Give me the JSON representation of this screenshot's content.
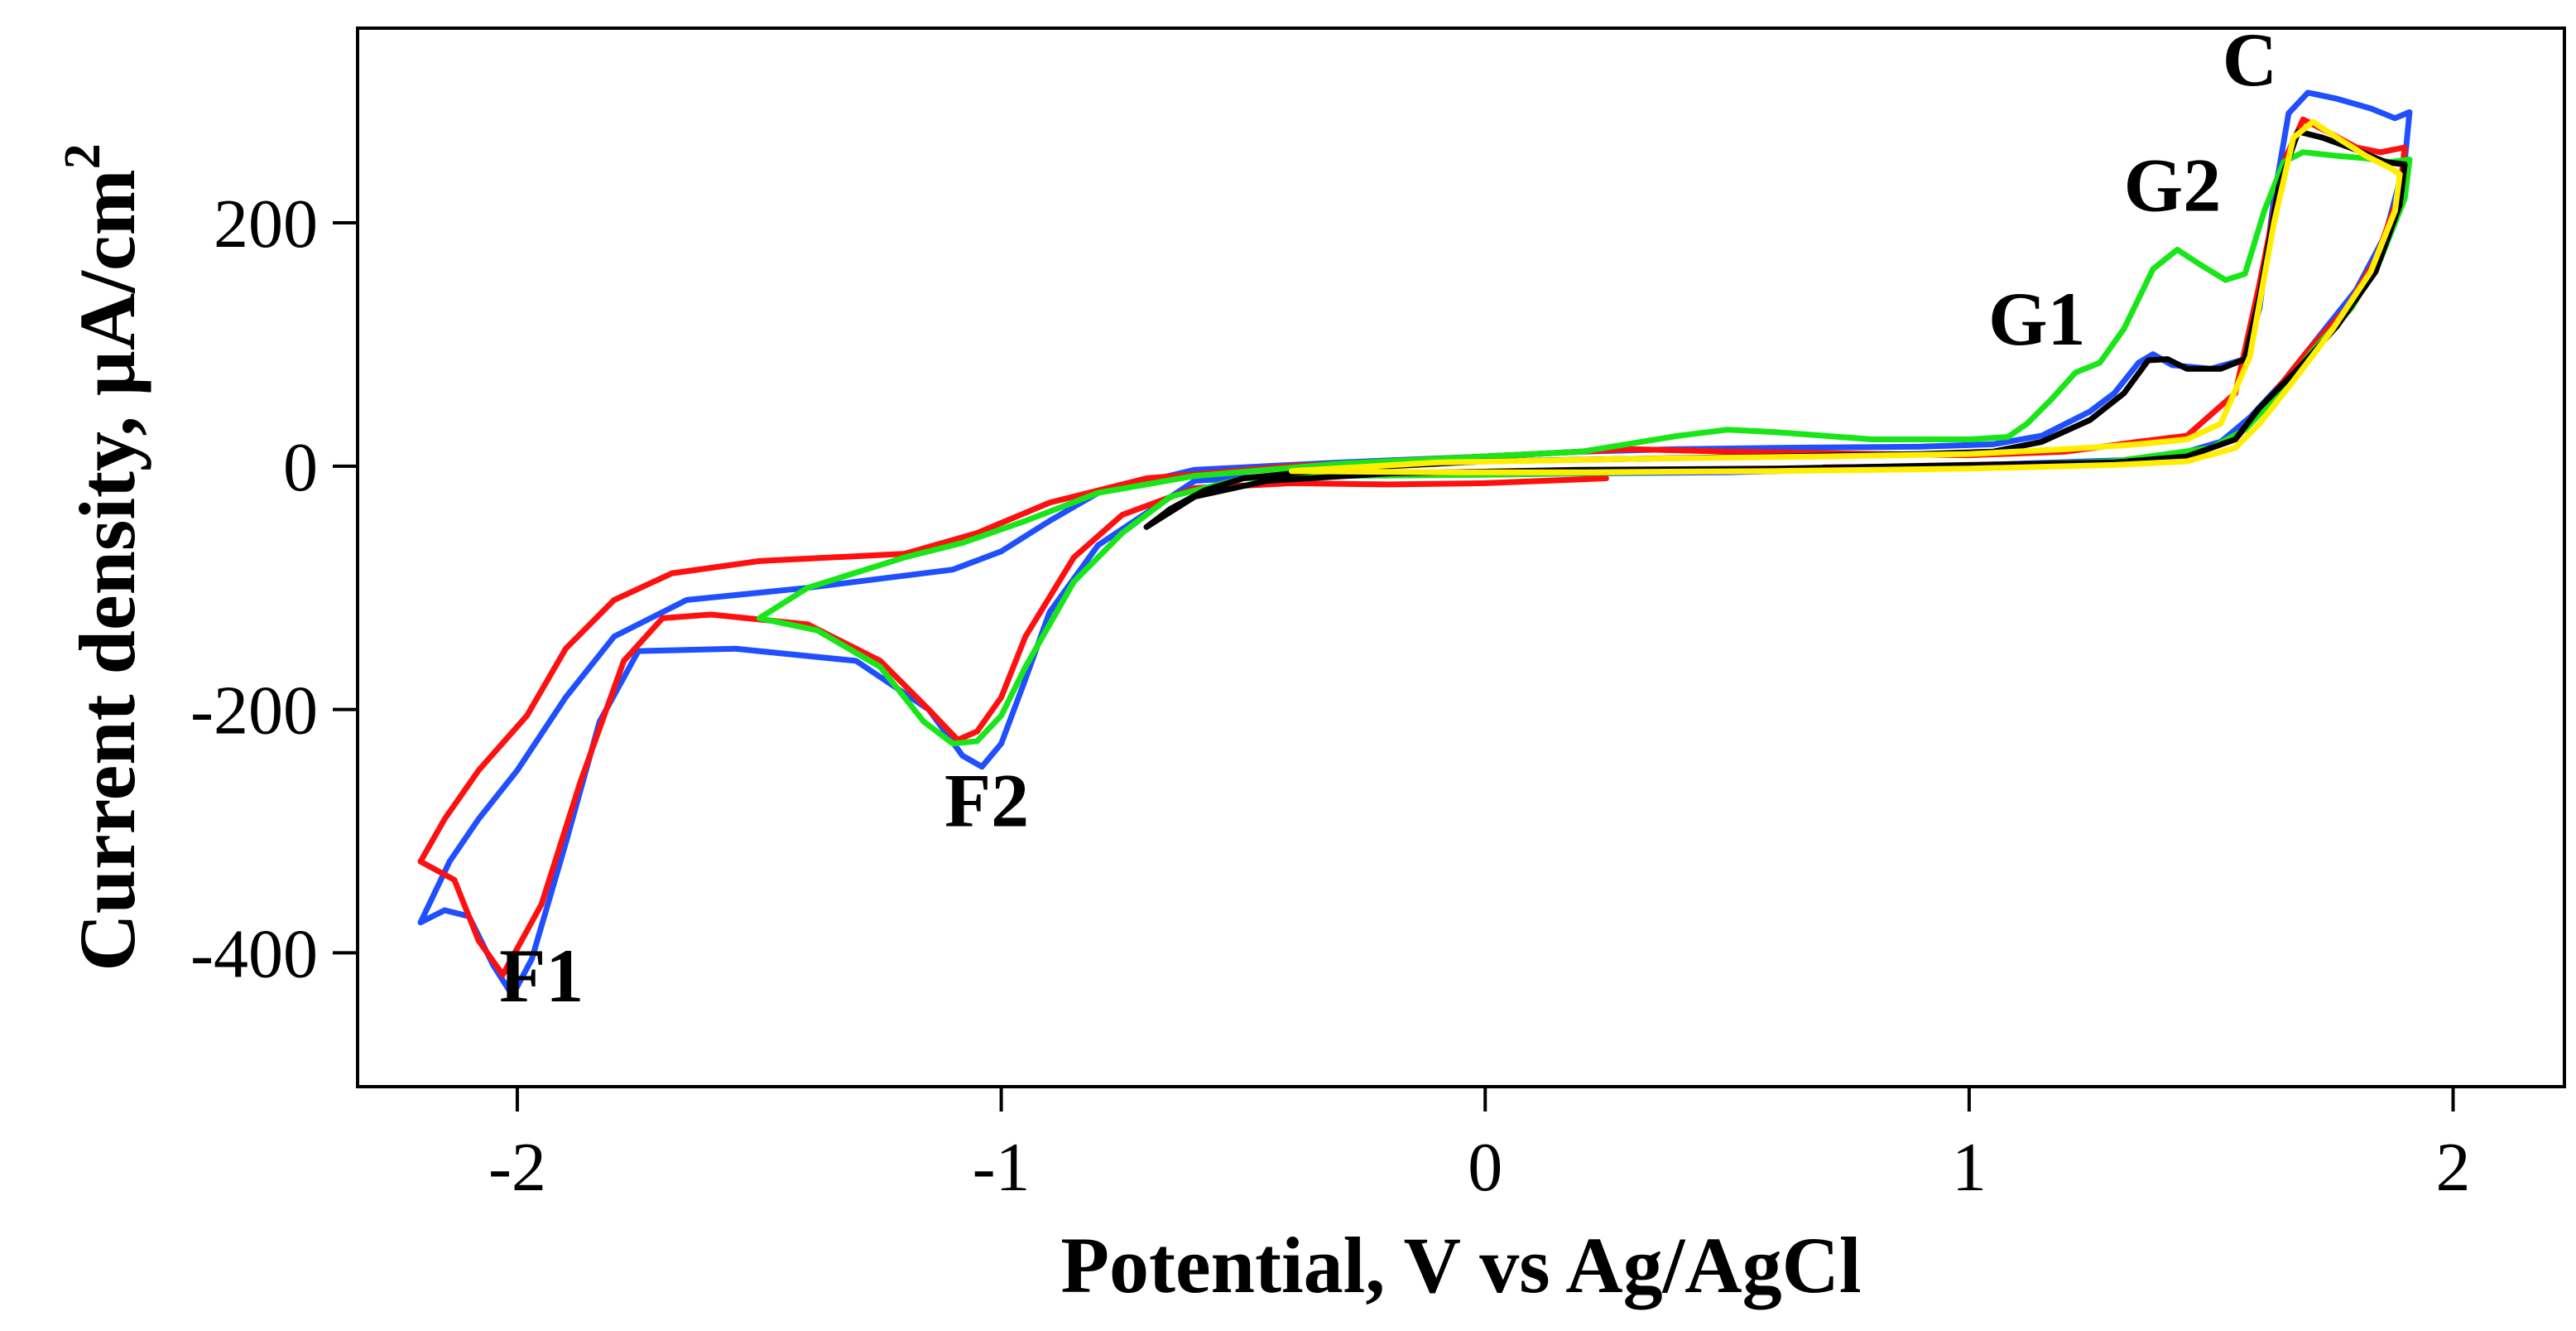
{
  "chart_data": {
    "type": "line",
    "title": "",
    "xlabel": "Potential, V vs Ag/AgCl",
    "ylabel_main": "Current density, µA/cm",
    "ylabel_superscript": "2",
    "xlim": [
      -2.33,
      2.23
    ],
    "ylim": [
      -510,
      360
    ],
    "xticks": [
      -2,
      -1,
      0,
      1,
      2
    ],
    "xtick_labels": [
      "-2",
      "-1",
      "0",
      "1",
      "2"
    ],
    "yticks": [
      200,
      0,
      -200,
      -400
    ],
    "ytick_labels": [
      "200",
      "0",
      "-200",
      "-400"
    ],
    "grid": false,
    "legend": "none",
    "annotations": [
      {
        "text": "F1",
        "x": -1.95,
        "y": -440
      },
      {
        "text": "F2",
        "x": -1.03,
        "y": -296
      },
      {
        "text": "G1",
        "x": 1.14,
        "y": 100
      },
      {
        "text": "G2",
        "x": 1.42,
        "y": 210
      },
      {
        "text": "C",
        "x": 1.58,
        "y": 313
      }
    ],
    "series": [
      {
        "name": "blue",
        "color": "#1f4fff",
        "points": [
          [
            -0.4,
            -7
          ],
          [
            -0.6,
            -12
          ],
          [
            -0.8,
            -65
          ],
          [
            -0.9,
            -120
          ],
          [
            -0.95,
            -175
          ],
          [
            -1.0,
            -228
          ],
          [
            -1.04,
            -247
          ],
          [
            -1.08,
            -238
          ],
          [
            -1.15,
            -200
          ],
          [
            -1.3,
            -160
          ],
          [
            -1.55,
            -150
          ],
          [
            -1.75,
            -152
          ],
          [
            -1.83,
            -210
          ],
          [
            -1.9,
            -310
          ],
          [
            -1.97,
            -405
          ],
          [
            -2.01,
            -435
          ],
          [
            -2.05,
            -410
          ],
          [
            -2.1,
            -370
          ],
          [
            -2.15,
            -365
          ],
          [
            -2.2,
            -375
          ],
          [
            -2.14,
            -325
          ],
          [
            -2.08,
            -290
          ],
          [
            -2.0,
            -250
          ],
          [
            -1.9,
            -190
          ],
          [
            -1.8,
            -140
          ],
          [
            -1.65,
            -110
          ],
          [
            -1.4,
            -100
          ],
          [
            -1.1,
            -85
          ],
          [
            -1.0,
            -70
          ],
          [
            -0.9,
            -45
          ],
          [
            -0.8,
            -22
          ],
          [
            -0.6,
            -3
          ],
          [
            -0.3,
            3
          ],
          [
            0.0,
            8
          ],
          [
            0.2,
            12
          ],
          [
            0.4,
            14
          ],
          [
            0.6,
            15
          ],
          [
            0.9,
            16
          ],
          [
            1.05,
            18
          ],
          [
            1.15,
            25
          ],
          [
            1.25,
            45
          ],
          [
            1.3,
            60
          ],
          [
            1.35,
            85
          ],
          [
            1.38,
            92
          ],
          [
            1.42,
            83
          ],
          [
            1.5,
            80
          ],
          [
            1.57,
            88
          ],
          [
            1.6,
            130
          ],
          [
            1.63,
            220
          ],
          [
            1.66,
            290
          ],
          [
            1.7,
            307
          ],
          [
            1.76,
            302
          ],
          [
            1.83,
            294
          ],
          [
            1.88,
            286
          ],
          [
            1.91,
            291
          ],
          [
            1.9,
            250
          ],
          [
            1.86,
            190
          ],
          [
            1.8,
            145
          ],
          [
            1.72,
            105
          ],
          [
            1.65,
            70
          ],
          [
            1.58,
            40
          ],
          [
            1.52,
            20
          ],
          [
            1.4,
            6
          ],
          [
            1.1,
            2
          ],
          [
            0.8,
            -2
          ],
          [
            0.5,
            -5
          ],
          [
            0.2,
            -6
          ],
          [
            0.0,
            -7
          ],
          [
            -0.2,
            -7
          ],
          [
            -0.4,
            -7
          ]
        ]
      },
      {
        "name": "red",
        "color": "#ff1010",
        "points": [
          [
            0.25,
            -10
          ],
          [
            0.0,
            -14
          ],
          [
            -0.2,
            -15
          ],
          [
            -0.4,
            -14
          ],
          [
            -0.6,
            -18
          ],
          [
            -0.75,
            -40
          ],
          [
            -0.85,
            -75
          ],
          [
            -0.95,
            -140
          ],
          [
            -1.0,
            -190
          ],
          [
            -1.05,
            -218
          ],
          [
            -1.09,
            -225
          ],
          [
            -1.15,
            -200
          ],
          [
            -1.25,
            -160
          ],
          [
            -1.4,
            -130
          ],
          [
            -1.6,
            -122
          ],
          [
            -1.7,
            -125
          ],
          [
            -1.78,
            -160
          ],
          [
            -1.87,
            -260
          ],
          [
            -1.95,
            -360
          ],
          [
            -2.03,
            -418
          ],
          [
            -2.08,
            -390
          ],
          [
            -2.13,
            -340
          ],
          [
            -2.2,
            -325
          ],
          [
            -2.15,
            -290
          ],
          [
            -2.08,
            -250
          ],
          [
            -1.98,
            -205
          ],
          [
            -1.9,
            -150
          ],
          [
            -1.8,
            -110
          ],
          [
            -1.68,
            -88
          ],
          [
            -1.5,
            -78
          ],
          [
            -1.2,
            -72
          ],
          [
            -1.05,
            -55
          ],
          [
            -0.9,
            -30
          ],
          [
            -0.7,
            -10
          ],
          [
            -0.4,
            0
          ],
          [
            -0.1,
            6
          ],
          [
            0.1,
            10
          ],
          [
            0.3,
            14
          ],
          [
            0.5,
            12
          ],
          [
            0.8,
            10
          ],
          [
            1.0,
            9
          ],
          [
            1.2,
            12
          ],
          [
            1.35,
            20
          ],
          [
            1.45,
            25
          ],
          [
            1.55,
            60
          ],
          [
            1.6,
            150
          ],
          [
            1.65,
            250
          ],
          [
            1.69,
            285
          ],
          [
            1.74,
            275
          ],
          [
            1.8,
            262
          ],
          [
            1.85,
            258
          ],
          [
            1.9,
            262
          ],
          [
            1.89,
            225
          ],
          [
            1.84,
            170
          ],
          [
            1.78,
            130
          ],
          [
            1.7,
            95
          ],
          [
            1.62,
            55
          ],
          [
            1.55,
            22
          ],
          [
            1.45,
            8
          ],
          [
            1.3,
            3
          ],
          [
            1.0,
            0
          ],
          [
            0.7,
            -1
          ]
        ]
      },
      {
        "name": "green",
        "color": "#19e619",
        "points": [
          [
            -1.5,
            -125
          ],
          [
            -1.4,
            -100
          ],
          [
            -1.2,
            -75
          ],
          [
            -1.08,
            -63
          ],
          [
            -0.95,
            -45
          ],
          [
            -0.8,
            -22
          ],
          [
            -0.6,
            -8
          ],
          [
            -0.3,
            2
          ],
          [
            0.0,
            8
          ],
          [
            0.2,
            12
          ],
          [
            0.4,
            25
          ],
          [
            0.5,
            30
          ],
          [
            0.6,
            28
          ],
          [
            0.8,
            22
          ],
          [
            1.0,
            22
          ],
          [
            1.08,
            24
          ],
          [
            1.12,
            35
          ],
          [
            1.17,
            55
          ],
          [
            1.22,
            77
          ],
          [
            1.27,
            85
          ],
          [
            1.32,
            113
          ],
          [
            1.38,
            162
          ],
          [
            1.43,
            178
          ],
          [
            1.48,
            165
          ],
          [
            1.53,
            153
          ],
          [
            1.57,
            158
          ],
          [
            1.61,
            210
          ],
          [
            1.65,
            250
          ],
          [
            1.69,
            258
          ],
          [
            1.76,
            255
          ],
          [
            1.82,
            253
          ],
          [
            1.87,
            250
          ],
          [
            1.91,
            252
          ],
          [
            1.9,
            220
          ],
          [
            1.85,
            170
          ],
          [
            1.79,
            130
          ],
          [
            1.71,
            95
          ],
          [
            1.64,
            60
          ],
          [
            1.57,
            30
          ],
          [
            1.5,
            15
          ],
          [
            1.3,
            4
          ],
          [
            1.0,
            0
          ],
          [
            0.7,
            -3
          ],
          [
            0.3,
            -5
          ],
          [
            0.0,
            -7
          ],
          [
            -0.3,
            -8
          ],
          [
            -0.5,
            -10
          ],
          [
            -0.65,
            -25
          ],
          [
            -0.75,
            -55
          ],
          [
            -0.85,
            -95
          ],
          [
            -0.95,
            -165
          ],
          [
            -1.0,
            -205
          ],
          [
            -1.05,
            -226
          ],
          [
            -1.1,
            -228
          ],
          [
            -1.16,
            -210
          ],
          [
            -1.25,
            -165
          ],
          [
            -1.38,
            -135
          ],
          [
            -1.5,
            -125
          ]
        ]
      },
      {
        "name": "black",
        "color": "#000000",
        "points": [
          [
            -0.7,
            -50
          ],
          [
            -0.65,
            -35
          ],
          [
            -0.58,
            -20
          ],
          [
            -0.5,
            -10
          ],
          [
            -0.3,
            -2
          ],
          [
            0.0,
            4
          ],
          [
            0.3,
            6
          ],
          [
            0.6,
            8
          ],
          [
            0.9,
            10
          ],
          [
            1.05,
            12
          ],
          [
            1.15,
            20
          ],
          [
            1.25,
            38
          ],
          [
            1.32,
            60
          ],
          [
            1.37,
            87
          ],
          [
            1.41,
            88
          ],
          [
            1.45,
            80
          ],
          [
            1.52,
            80
          ],
          [
            1.57,
            88
          ],
          [
            1.6,
            140
          ],
          [
            1.64,
            230
          ],
          [
            1.68,
            275
          ],
          [
            1.73,
            270
          ],
          [
            1.8,
            260
          ],
          [
            1.86,
            250
          ],
          [
            1.9,
            248
          ],
          [
            1.89,
            215
          ],
          [
            1.84,
            160
          ],
          [
            1.76,
            115
          ],
          [
            1.68,
            80
          ],
          [
            1.6,
            48
          ],
          [
            1.55,
            22
          ],
          [
            1.45,
            8
          ],
          [
            1.3,
            3
          ],
          [
            1.0,
            1
          ],
          [
            0.6,
            -2
          ],
          [
            0.2,
            -3
          ],
          [
            -0.2,
            -6
          ],
          [
            -0.45,
            -12
          ],
          [
            -0.6,
            -25
          ],
          [
            -0.7,
            -50
          ]
        ]
      },
      {
        "name": "yellow",
        "color": "#ffee00",
        "points": [
          [
            -0.4,
            -4
          ],
          [
            -0.1,
            3
          ],
          [
            0.3,
            6
          ],
          [
            0.7,
            8
          ],
          [
            1.0,
            10
          ],
          [
            1.2,
            14
          ],
          [
            1.35,
            18
          ],
          [
            1.45,
            22
          ],
          [
            1.52,
            35
          ],
          [
            1.58,
            90
          ],
          [
            1.63,
            200
          ],
          [
            1.67,
            270
          ],
          [
            1.71,
            283
          ],
          [
            1.76,
            270
          ],
          [
            1.82,
            255
          ],
          [
            1.87,
            245
          ],
          [
            1.89,
            240
          ],
          [
            1.88,
            210
          ],
          [
            1.83,
            160
          ],
          [
            1.75,
            112
          ],
          [
            1.67,
            70
          ],
          [
            1.6,
            35
          ],
          [
            1.55,
            15
          ],
          [
            1.45,
            4
          ],
          [
            1.3,
            1
          ],
          [
            1.0,
            -2
          ],
          [
            0.6,
            -4
          ],
          [
            0.2,
            -5
          ],
          [
            -0.1,
            -5
          ],
          [
            -0.4,
            -4
          ]
        ]
      }
    ]
  }
}
